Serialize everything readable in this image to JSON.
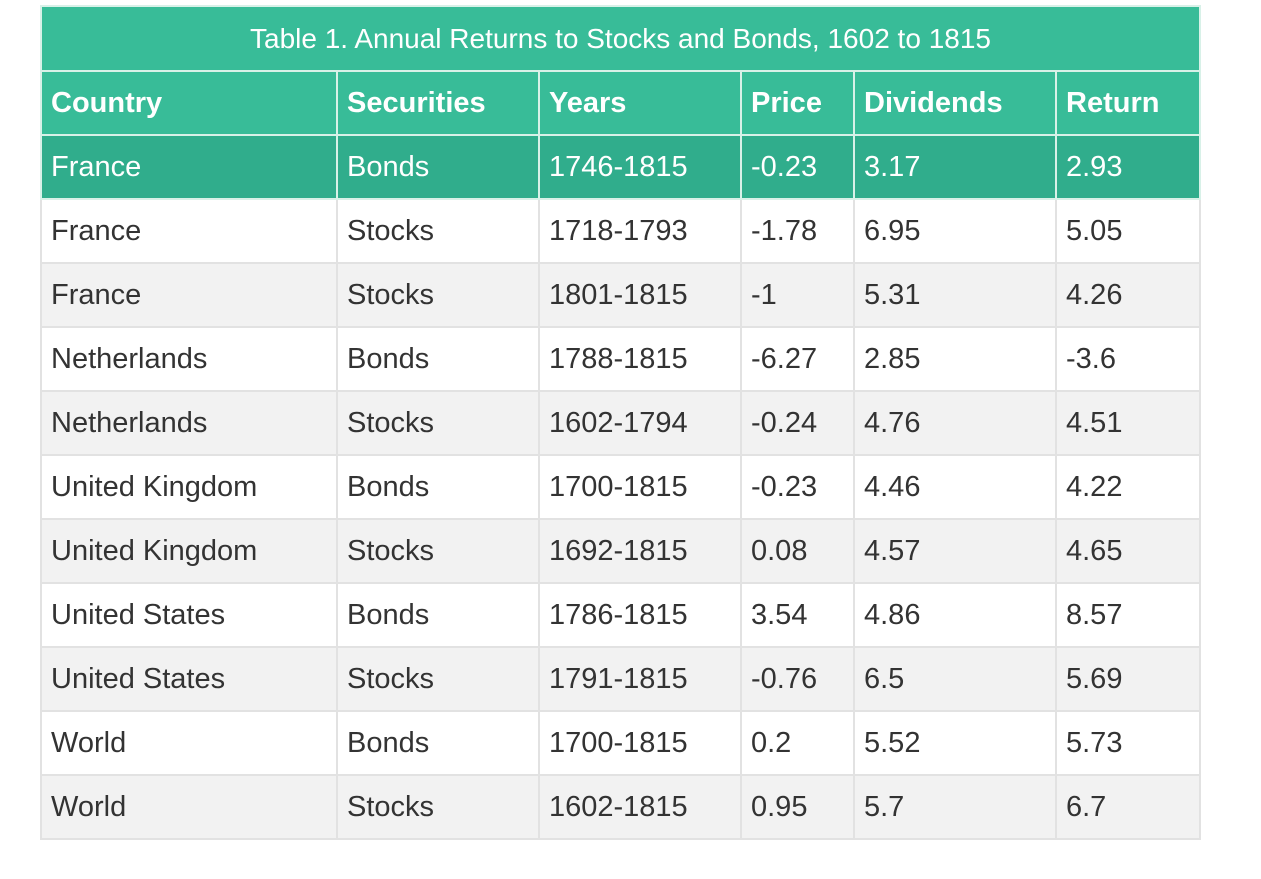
{
  "title": "Table 1. Annual Returns to Stocks and Bonds, 1602 to 1815",
  "columns": [
    "Country",
    "Securities",
    "Years",
    "Price",
    "Dividends",
    "Return"
  ],
  "rows": [
    [
      "France",
      "Bonds",
      "1746-1815",
      "-0.23",
      "3.17",
      "2.93"
    ],
    [
      "France",
      "Stocks",
      "1718-1793",
      "-1.78",
      "6.95",
      "5.05"
    ],
    [
      "France",
      "Stocks",
      "1801-1815",
      "-1",
      "5.31",
      "4.26"
    ],
    [
      "Netherlands",
      "Bonds",
      "1788-1815",
      "-6.27",
      "2.85",
      "-3.6"
    ],
    [
      "Netherlands",
      "Stocks",
      "1602-1794",
      "-0.24",
      "4.76",
      "4.51"
    ],
    [
      "United Kingdom",
      "Bonds",
      "1700-1815",
      "-0.23",
      "4.46",
      "4.22"
    ],
    [
      "United Kingdom",
      "Stocks",
      "1692-1815",
      "0.08",
      "4.57",
      "4.65"
    ],
    [
      "United States",
      "Bonds",
      "1786-1815",
      "3.54",
      "4.86",
      "8.57"
    ],
    [
      "United States",
      "Stocks",
      "1791-1815",
      "-0.76",
      "6.5",
      "5.69"
    ],
    [
      "World",
      "Bonds",
      "1700-1815",
      "0.2",
      "5.52",
      "5.73"
    ],
    [
      "World",
      "Stocks",
      "1602-1815",
      "0.95",
      "5.7",
      "6.7"
    ]
  ],
  "colors": {
    "header_bg": "#38bc98",
    "highlight_bg": "#30ad8c",
    "row_alt_bg": "#f2f2f2",
    "text": "#333333"
  }
}
